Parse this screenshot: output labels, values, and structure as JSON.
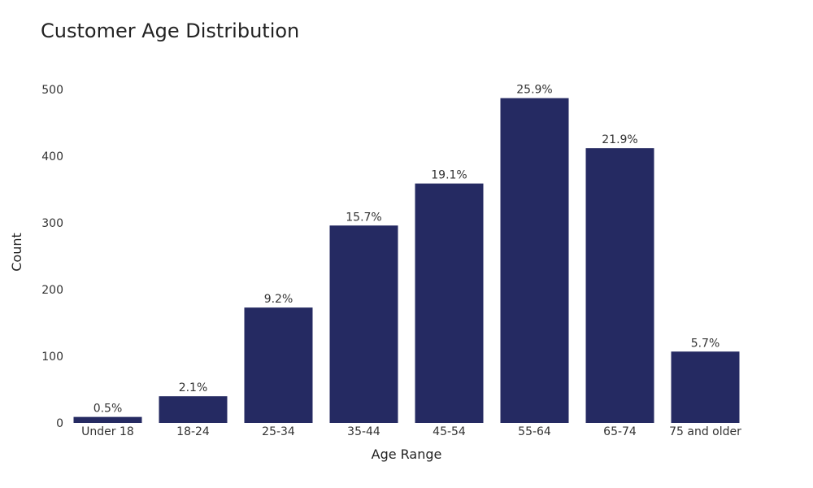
{
  "chart_data": {
    "type": "bar",
    "title": "Customer Age Distribution",
    "xlabel": "Age Range",
    "ylabel": "Count",
    "categories": [
      "Under 18",
      "18-24",
      "25-34",
      "35-44",
      "45-54",
      "55-64",
      "65-74",
      "75 and older"
    ],
    "values": [
      9,
      40,
      173,
      296,
      359,
      487,
      412,
      107
    ],
    "labels": [
      "0.5%",
      "2.1%",
      "9.2%",
      "15.7%",
      "19.1%",
      "25.9%",
      "21.9%",
      "5.7%"
    ],
    "ylim": [
      0,
      520
    ],
    "yticks": [
      0,
      100,
      200,
      300,
      400,
      500
    ],
    "bar_color": "#252a62",
    "grid": false
  }
}
